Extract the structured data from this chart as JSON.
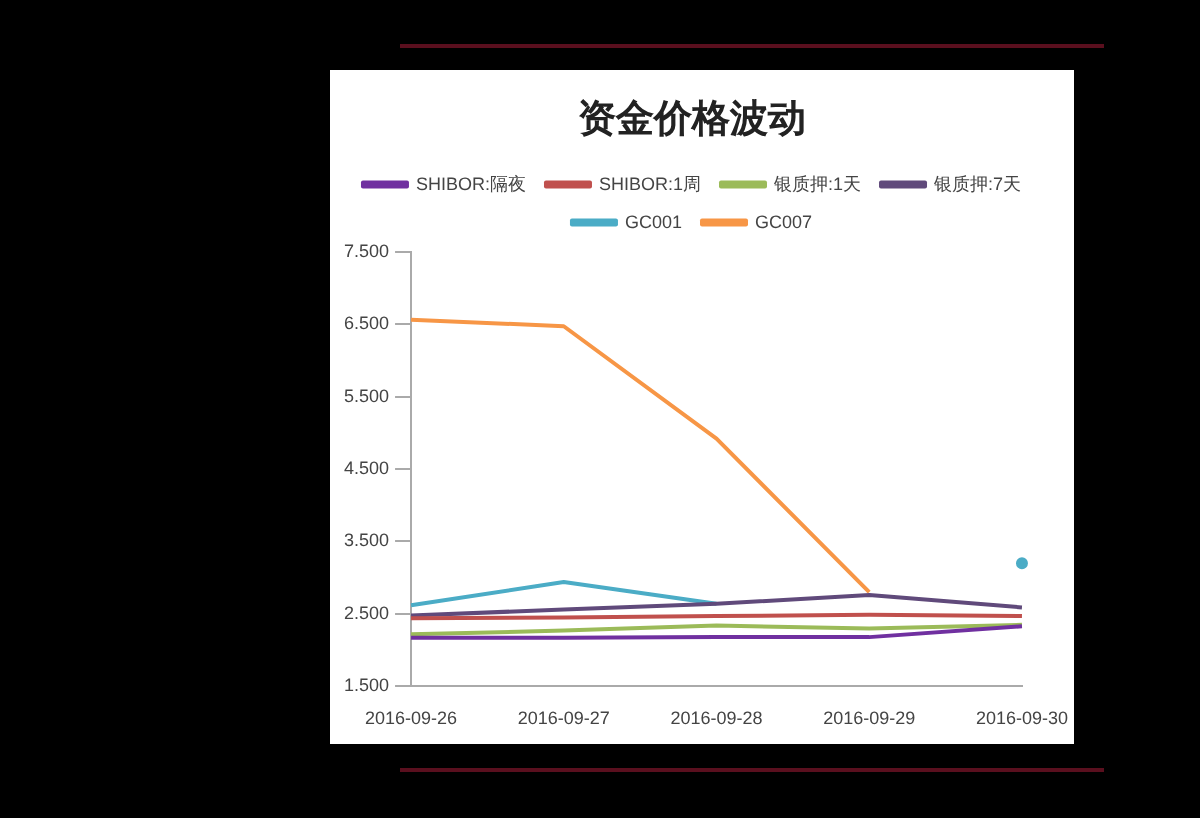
{
  "chart_data": {
    "type": "line",
    "title": "资金价格波动",
    "categories": [
      "2016-09-26",
      "2016-09-27",
      "2016-09-28",
      "2016-09-29",
      "2016-09-30"
    ],
    "series": [
      {
        "name": "SHIBOR:隔夜",
        "color": "#7030a0",
        "values": [
          2.17,
          2.17,
          2.18,
          2.18,
          2.33
        ]
      },
      {
        "name": "SHIBOR:1周",
        "color": "#c0504d",
        "values": [
          2.44,
          2.45,
          2.47,
          2.49,
          2.47
        ]
      },
      {
        "name": "银质押:1天",
        "color": "#9bbb59",
        "values": [
          2.22,
          2.27,
          2.34,
          2.3,
          2.35
        ]
      },
      {
        "name": "银质押:7天",
        "color": "#604a7b",
        "values": [
          2.48,
          2.56,
          2.64,
          2.76,
          2.59
        ]
      },
      {
        "name": "GC001",
        "color": "#4bacc6",
        "values": [
          2.62,
          2.94,
          2.64,
          null,
          3.2
        ]
      },
      {
        "name": "GC007",
        "color": "#f79646",
        "values": [
          6.56,
          6.47,
          4.92,
          2.8,
          null
        ]
      }
    ],
    "ylim": [
      1.5,
      7.5
    ],
    "yticks": [
      {
        "value": 1.5,
        "label": "1.500"
      },
      {
        "value": 2.5,
        "label": "2.500"
      },
      {
        "value": 3.5,
        "label": "3.500"
      },
      {
        "value": 4.5,
        "label": "4.500"
      },
      {
        "value": 5.5,
        "label": "5.500"
      },
      {
        "value": 6.5,
        "label": "6.500"
      },
      {
        "value": 7.5,
        "label": "7.500"
      }
    ],
    "grid": false,
    "legend": "top",
    "marker": "none",
    "line_style": "solid"
  }
}
